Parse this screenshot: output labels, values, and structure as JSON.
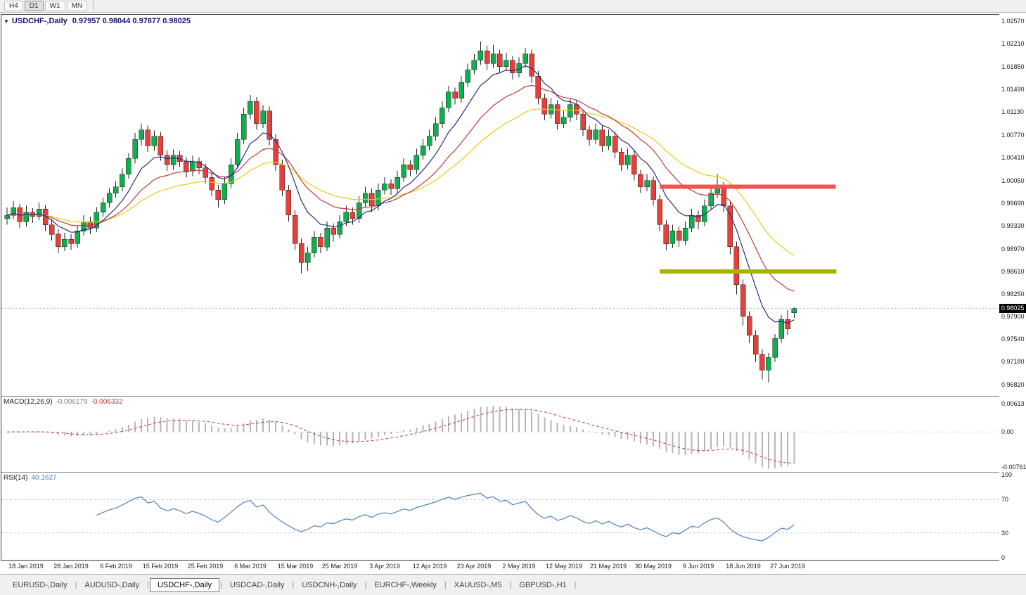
{
  "toolbar": {
    "timeframes": [
      {
        "label": "H4",
        "active": false
      },
      {
        "label": "D1",
        "active": true
      },
      {
        "label": "W1",
        "active": false
      },
      {
        "label": "MN",
        "active": false
      }
    ]
  },
  "chart": {
    "title_symbol": "USDCHF-,Daily",
    "ohlc_display": "0.97957 0.98044 0.97877 0.98025",
    "current_price": "0.98025"
  },
  "price_axis": {
    "labels": [
      "1.02570",
      "1.02210",
      "1.01850",
      "1.01490",
      "1.01130",
      "1.00770",
      "1.00410",
      "1.00050",
      "0.99690",
      "0.99330",
      "0.98970",
      "0.98610",
      "0.98250",
      "0.97900",
      "0.97540",
      "0.97180",
      "0.96820"
    ]
  },
  "chart_data": {
    "type": "candlestick",
    "symbol": "USDCHF",
    "timeframe": "Daily",
    "title": "USDCHF-,Daily",
    "price_range": {
      "top": 1.0266,
      "bottom": 0.9664
    },
    "x_axis_labels": [
      "18 Jan 2019",
      "28 Jan 2019",
      "6 Feb 2019",
      "15 Feb 2019",
      "25 Feb 2019",
      "6 Mar 2019",
      "15 Mar 2019",
      "25 Mar 2019",
      "3 Apr 2019",
      "12 Apr 2019",
      "23 Apr 2019",
      "2 May 2019",
      "12 May 2019",
      "21 May 2019",
      "30 May 2019",
      "9 Jun 2019",
      "18 Jun 2019",
      "27 Jun 2019"
    ],
    "x_label_first_index": 3,
    "x_label_step": 7,
    "candles": [
      [
        0.9945,
        0.9962,
        0.9935,
        0.995
      ],
      [
        0.995,
        0.9972,
        0.9944,
        0.9962
      ],
      [
        0.9962,
        0.9968,
        0.993,
        0.994
      ],
      [
        0.994,
        0.9965,
        0.9932,
        0.9955
      ],
      [
        0.9955,
        0.9961,
        0.9938,
        0.9948
      ],
      [
        0.9948,
        0.997,
        0.9942,
        0.996
      ],
      [
        0.996,
        0.9966,
        0.9925,
        0.9935
      ],
      [
        0.9935,
        0.9944,
        0.991,
        0.992
      ],
      [
        0.992,
        0.9928,
        0.989,
        0.99
      ],
      [
        0.99,
        0.9922,
        0.9893,
        0.9912
      ],
      [
        0.9912,
        0.992,
        0.9895,
        0.9905
      ],
      [
        0.9905,
        0.9933,
        0.9898,
        0.9925
      ],
      [
        0.9925,
        0.995,
        0.9918,
        0.994
      ],
      [
        0.994,
        0.9948,
        0.992,
        0.993
      ],
      [
        0.993,
        0.9963,
        0.9924,
        0.9955
      ],
      [
        0.9955,
        0.9978,
        0.9948,
        0.997
      ],
      [
        0.997,
        0.9993,
        0.9962,
        0.9985
      ],
      [
        0.9985,
        1.0004,
        0.9978,
        0.9995
      ],
      [
        0.9995,
        1.0024,
        0.9988,
        1.0015
      ],
      [
        1.0015,
        1.0048,
        1.0008,
        1.004
      ],
      [
        1.004,
        1.008,
        1.0032,
        1.007
      ],
      [
        1.007,
        1.0095,
        1.006,
        1.0085
      ],
      [
        1.0085,
        1.0092,
        1.005,
        1.006
      ],
      [
        1.006,
        1.0084,
        1.0052,
        1.0075
      ],
      [
        1.0075,
        1.0082,
        1.0036,
        1.0045
      ],
      [
        1.0045,
        1.0053,
        1.002,
        1.003
      ],
      [
        1.003,
        1.0054,
        1.0022,
        1.0045
      ],
      [
        1.0045,
        1.0052,
        1.0026,
        1.0035
      ],
      [
        1.0035,
        1.0042,
        1.001,
        1.002
      ],
      [
        1.002,
        1.0044,
        1.0012,
        1.0035
      ],
      [
        1.0035,
        1.0042,
        1.0015,
        1.0025
      ],
      [
        1.0025,
        1.0032,
        1.0,
        1.001
      ],
      [
        1.001,
        1.0018,
        0.998,
        0.999
      ],
      [
        0.999,
        0.9998,
        0.9962,
        0.9975
      ],
      [
        0.9975,
        1.001,
        0.9968,
        1.0
      ],
      [
        1.0,
        1.004,
        0.9993,
        1.003
      ],
      [
        1.003,
        1.008,
        1.0024,
        1.007
      ],
      [
        1.007,
        1.012,
        1.0063,
        1.011
      ],
      [
        1.011,
        1.014,
        1.0102,
        1.013
      ],
      [
        1.013,
        1.0137,
        1.0085,
        1.0095
      ],
      [
        1.0095,
        1.0124,
        1.0088,
        1.0115
      ],
      [
        1.0115,
        1.0122,
        1.006,
        1.007
      ],
      [
        1.007,
        1.0078,
        1.002,
        1.003
      ],
      [
        1.003,
        1.0038,
        0.998,
        0.999
      ],
      [
        0.999,
        0.9998,
        0.994,
        0.995
      ],
      [
        0.995,
        0.9958,
        0.9895,
        0.9905
      ],
      [
        0.9905,
        0.9913,
        0.9858,
        0.9875
      ],
      [
        0.9875,
        0.99,
        0.9862,
        0.989
      ],
      [
        0.989,
        0.9925,
        0.9883,
        0.9915
      ],
      [
        0.9915,
        0.9922,
        0.989,
        0.99
      ],
      [
        0.99,
        0.994,
        0.9893,
        0.993
      ],
      [
        0.993,
        0.9937,
        0.9908,
        0.992
      ],
      [
        0.992,
        0.995,
        0.9913,
        0.994
      ],
      [
        0.994,
        0.9965,
        0.9933,
        0.9955
      ],
      [
        0.9955,
        0.9962,
        0.9935,
        0.9945
      ],
      [
        0.9945,
        0.998,
        0.9938,
        0.997
      ],
      [
        0.997,
        0.9995,
        0.9963,
        0.9985
      ],
      [
        0.9985,
        0.9992,
        0.9955,
        0.9965
      ],
      [
        0.9965,
        1.0,
        0.9958,
        0.999
      ],
      [
        0.999,
        1.001,
        0.9983,
        1.0
      ],
      [
        1.0,
        1.0007,
        0.9982,
        0.9992
      ],
      [
        0.9992,
        1.002,
        0.9985,
        1.001
      ],
      [
        1.001,
        1.004,
        1.0003,
        1.003
      ],
      [
        1.003,
        1.0037,
        1.0012,
        1.0022
      ],
      [
        1.0022,
        1.0055,
        1.0015,
        1.0045
      ],
      [
        1.0045,
        1.007,
        1.0038,
        1.006
      ],
      [
        1.006,
        1.0085,
        1.0053,
        1.0075
      ],
      [
        1.0075,
        1.0105,
        1.0068,
        1.0095
      ],
      [
        1.0095,
        1.013,
        1.0088,
        1.012
      ],
      [
        1.012,
        1.0155,
        1.0113,
        1.0145
      ],
      [
        1.0145,
        1.0152,
        1.0125,
        1.0135
      ],
      [
        1.0135,
        1.017,
        1.0128,
        1.016
      ],
      [
        1.016,
        1.019,
        1.0153,
        1.018
      ],
      [
        1.018,
        1.0205,
        1.0173,
        1.0195
      ],
      [
        1.0195,
        1.0225,
        1.0188,
        1.021
      ],
      [
        1.021,
        1.0218,
        1.018,
        1.019
      ],
      [
        1.019,
        1.022,
        1.0183,
        1.0205
      ],
      [
        1.0205,
        1.0212,
        1.0175,
        1.0185
      ],
      [
        1.0185,
        1.0207,
        1.0178,
        1.0195
      ],
      [
        1.0195,
        1.0202,
        1.0165,
        1.0175
      ],
      [
        1.0175,
        1.02,
        1.0168,
        1.019
      ],
      [
        1.019,
        1.0215,
        1.0183,
        1.0205
      ],
      [
        1.0205,
        1.0212,
        1.016,
        1.017
      ],
      [
        1.017,
        1.0178,
        1.0125,
        1.0135
      ],
      [
        1.0135,
        1.0142,
        1.01,
        1.011
      ],
      [
        1.011,
        1.0135,
        1.0103,
        1.0125
      ],
      [
        1.0125,
        1.0132,
        1.0085,
        1.0095
      ],
      [
        1.0095,
        1.0115,
        1.0088,
        1.0105
      ],
      [
        1.0105,
        1.0135,
        1.0098,
        1.0125
      ],
      [
        1.0125,
        1.0132,
        1.01,
        1.011
      ],
      [
        1.011,
        1.0117,
        1.0075,
        1.0085
      ],
      [
        1.0085,
        1.0092,
        1.006,
        1.007
      ],
      [
        1.007,
        1.0095,
        1.0063,
        1.0085
      ],
      [
        1.0085,
        1.0092,
        1.005,
        1.006
      ],
      [
        1.006,
        1.0085,
        1.0053,
        1.0075
      ],
      [
        1.0075,
        1.0082,
        1.004,
        1.005
      ],
      [
        1.005,
        1.0057,
        1.002,
        1.003
      ],
      [
        1.003,
        1.0055,
        1.0023,
        1.0045
      ],
      [
        1.0045,
        1.0052,
        1.0005,
        1.0015
      ],
      [
        1.0015,
        1.0022,
        0.9985,
        0.9995
      ],
      [
        0.9995,
        1.0015,
        0.9988,
        1.0005
      ],
      [
        1.0005,
        1.0012,
        0.9965,
        0.9975
      ],
      [
        0.9975,
        0.9982,
        0.9925,
        0.9935
      ],
      [
        0.9935,
        0.9942,
        0.9895,
        0.9905
      ],
      [
        0.9905,
        0.9935,
        0.9898,
        0.9925
      ],
      [
        0.9925,
        0.9932,
        0.99,
        0.991
      ],
      [
        0.991,
        0.994,
        0.9903,
        0.993
      ],
      [
        0.993,
        0.996,
        0.9923,
        0.995
      ],
      [
        0.995,
        0.9957,
        0.9928,
        0.994
      ],
      [
        0.994,
        0.9975,
        0.9933,
        0.9965
      ],
      [
        0.9965,
        0.9995,
        0.9958,
        0.9985
      ],
      [
        0.9985,
        1.0015,
        0.9978,
        0.9995
      ],
      [
        0.9995,
        1.0002,
        0.9955,
        0.9965
      ],
      [
        0.9965,
        0.9972,
        0.9888,
        0.99
      ],
      [
        0.99,
        0.9908,
        0.9825,
        0.984
      ],
      [
        0.984,
        0.9848,
        0.9775,
        0.979
      ],
      [
        0.979,
        0.9798,
        0.9748,
        0.976
      ],
      [
        0.976,
        0.9768,
        0.9718,
        0.973
      ],
      [
        0.973,
        0.9738,
        0.969,
        0.9705
      ],
      [
        0.9705,
        0.9732,
        0.9685,
        0.9725
      ],
      [
        0.9725,
        0.9762,
        0.9718,
        0.9755
      ],
      [
        0.9755,
        0.9792,
        0.9748,
        0.9785
      ],
      [
        0.9785,
        0.98,
        0.976,
        0.977
      ],
      [
        0.97957,
        0.98044,
        0.97877,
        0.98025
      ]
    ],
    "moving_averages": [
      {
        "period": 30,
        "color": "#e8cc10",
        "name": "ma-slow"
      },
      {
        "period": 17,
        "color": "#c23b3b",
        "name": "ma-mid"
      },
      {
        "period": 8,
        "color": "#2b2b85",
        "name": "ma-fast"
      }
    ],
    "overlays": {
      "horizontal_segments": [
        {
          "price": 0.9995,
          "from_index": 102,
          "to_index": 129.5,
          "color": "#f0544f",
          "thickness": 6,
          "name": "resistance-line"
        },
        {
          "price": 0.9861,
          "from_index": 102,
          "to_index": 129.6,
          "color": "#a8b400",
          "thickness": 6,
          "name": "support-line"
        }
      ]
    },
    "indicators": {
      "macd": {
        "label": "MACD(12,26,9)",
        "fast": 12,
        "slow": 26,
        "signal": 9,
        "value_main": "-0.006179",
        "value_signal": "-0.006332",
        "hist_color": "#b6b6b6",
        "signal_color": "#c03a3a",
        "axis_labels": [
          "0.00613",
          "0.00",
          "-0.00761"
        ],
        "axis_values": [
          0.00613,
          0,
          -0.00761
        ]
      },
      "rsi": {
        "label": "RSI(14)",
        "period": 14,
        "value": "40.1627",
        "color": "#4f81bd",
        "levels": [
          70,
          30
        ],
        "axis_labels": [
          "100",
          "70",
          "30",
          "0"
        ],
        "axis_values": [
          100,
          70,
          30,
          0
        ]
      }
    }
  },
  "tabs": {
    "items": [
      {
        "label": "EURUSD-,Daily",
        "active": false
      },
      {
        "label": "AUDUSD-,Daily",
        "active": false
      },
      {
        "label": "USDCHF-,Daily",
        "active": true
      },
      {
        "label": "USDCAD-,Daily",
        "active": false
      },
      {
        "label": "USDCNH-,Daily",
        "active": false
      },
      {
        "label": "EURCHF-,Weekly",
        "active": false
      },
      {
        "label": "XAUUSD-,M5",
        "active": false
      },
      {
        "label": "GBPUSD-,H1",
        "active": false
      }
    ]
  },
  "colors": {
    "bull": "#0fae4e",
    "bear": "#e5403a",
    "wick": "#222222",
    "price_tag_bg": "#000000",
    "price_tag_text": "#ffffff"
  }
}
